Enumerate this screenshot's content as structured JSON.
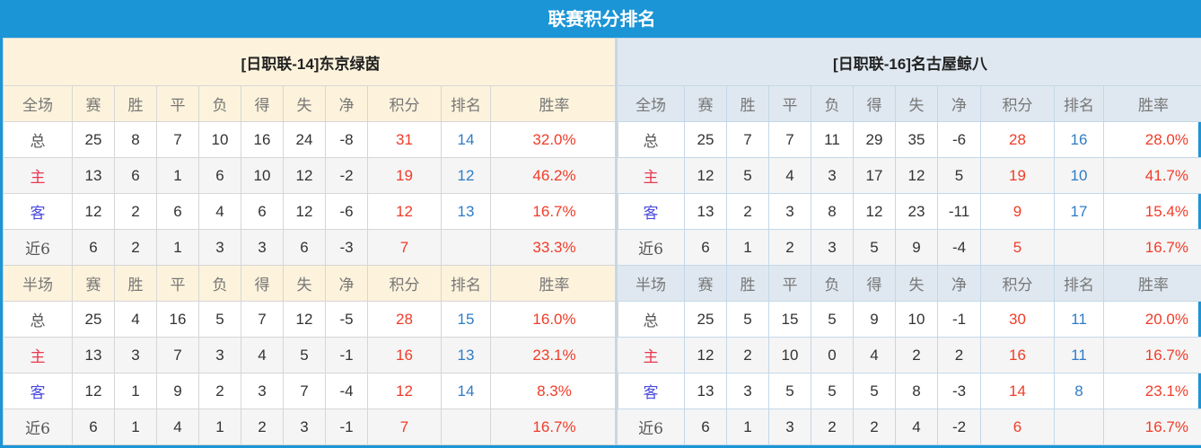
{
  "title": "联赛积分排名",
  "colors": {
    "header_bg": "#1b95d6",
    "points": "#f03c28",
    "rank": "#2f7cc6",
    "home_label": "#e8384f",
    "away_label": "#4a4ae0"
  },
  "columns": [
    "赛",
    "胜",
    "平",
    "负",
    "得",
    "失",
    "净",
    "积分",
    "排名",
    "胜率"
  ],
  "teams": [
    {
      "name": "[日职联-14]东京绿茵",
      "sections": [
        {
          "label": "全场",
          "rows": [
            {
              "label": "总",
              "values": [
                "25",
                "8",
                "7",
                "10",
                "16",
                "24",
                "-8",
                "31",
                "14",
                "32.0%"
              ]
            },
            {
              "label": "主",
              "values": [
                "13",
                "6",
                "1",
                "6",
                "10",
                "12",
                "-2",
                "19",
                "12",
                "46.2%"
              ]
            },
            {
              "label": "客",
              "values": [
                "12",
                "2",
                "6",
                "4",
                "6",
                "12",
                "-6",
                "12",
                "13",
                "16.7%"
              ]
            },
            {
              "label": "近6",
              "values": [
                "6",
                "2",
                "1",
                "3",
                "3",
                "6",
                "-3",
                "7",
                "",
                "33.3%"
              ]
            }
          ]
        },
        {
          "label": "半场",
          "rows": [
            {
              "label": "总",
              "values": [
                "25",
                "4",
                "16",
                "5",
                "7",
                "12",
                "-5",
                "28",
                "15",
                "16.0%"
              ]
            },
            {
              "label": "主",
              "values": [
                "13",
                "3",
                "7",
                "3",
                "4",
                "5",
                "-1",
                "16",
                "13",
                "23.1%"
              ]
            },
            {
              "label": "客",
              "values": [
                "12",
                "1",
                "9",
                "2",
                "3",
                "7",
                "-4",
                "12",
                "14",
                "8.3%"
              ]
            },
            {
              "label": "近6",
              "values": [
                "6",
                "1",
                "4",
                "1",
                "2",
                "3",
                "-1",
                "7",
                "",
                "16.7%"
              ]
            }
          ]
        }
      ]
    },
    {
      "name": "[日职联-16]名古屋鲸八",
      "sections": [
        {
          "label": "全场",
          "rows": [
            {
              "label": "总",
              "values": [
                "25",
                "7",
                "7",
                "11",
                "29",
                "35",
                "-6",
                "28",
                "16",
                "28.0%"
              ]
            },
            {
              "label": "主",
              "values": [
                "12",
                "5",
                "4",
                "3",
                "17",
                "12",
                "5",
                "19",
                "10",
                "41.7%"
              ]
            },
            {
              "label": "客",
              "values": [
                "13",
                "2",
                "3",
                "8",
                "12",
                "23",
                "-11",
                "9",
                "17",
                "15.4%"
              ]
            },
            {
              "label": "近6",
              "values": [
                "6",
                "1",
                "2",
                "3",
                "5",
                "9",
                "-4",
                "5",
                "",
                "16.7%"
              ]
            }
          ]
        },
        {
          "label": "半场",
          "rows": [
            {
              "label": "总",
              "values": [
                "25",
                "5",
                "15",
                "5",
                "9",
                "10",
                "-1",
                "30",
                "11",
                "20.0%"
              ]
            },
            {
              "label": "主",
              "values": [
                "12",
                "2",
                "10",
                "0",
                "4",
                "2",
                "2",
                "16",
                "11",
                "16.7%"
              ]
            },
            {
              "label": "客",
              "values": [
                "13",
                "3",
                "5",
                "5",
                "5",
                "8",
                "-3",
                "14",
                "8",
                "23.1%"
              ]
            },
            {
              "label": "近6",
              "values": [
                "6",
                "1",
                "3",
                "2",
                "2",
                "4",
                "-2",
                "6",
                "",
                "16.7%"
              ]
            }
          ]
        }
      ]
    }
  ]
}
